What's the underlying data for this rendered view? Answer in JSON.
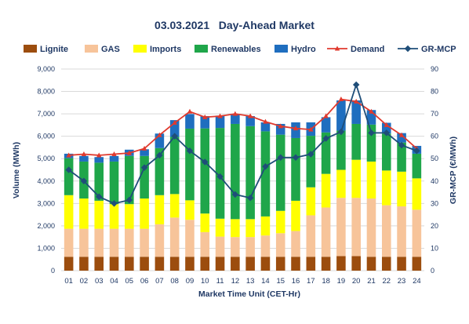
{
  "chart_data": {
    "type": "bar",
    "stacked": true,
    "title": "03.03.2021   Day-Ahead Market",
    "xlabel": "Market Time Unit (CET-Hr)",
    "ylabel": "Volume (MWh)",
    "y2label": "GR-MCP (€/MWh)",
    "ylim": [
      0,
      9000
    ],
    "y2lim": [
      0,
      90
    ],
    "yticks": [
      "0",
      "1,000",
      "2,000",
      "3,000",
      "4,000",
      "5,000",
      "6,000",
      "7,000",
      "8,000",
      "9,000"
    ],
    "y2ticks": [
      "0",
      "10",
      "20",
      "30",
      "40",
      "50",
      "60",
      "70",
      "80",
      "90"
    ],
    "grid": true,
    "legend_position": "top",
    "categories": [
      "01",
      "02",
      "03",
      "04",
      "05",
      "06",
      "07",
      "08",
      "09",
      "10",
      "11",
      "12",
      "13",
      "14",
      "15",
      "16",
      "17",
      "18",
      "19",
      "20",
      "21",
      "22",
      "23",
      "24"
    ],
    "series": [
      {
        "name": "Lignite",
        "type": "bar",
        "color": "#9c4d0e",
        "values": [
          620,
          620,
          620,
          620,
          620,
          620,
          620,
          620,
          620,
          620,
          620,
          620,
          620,
          620,
          620,
          620,
          620,
          620,
          650,
          650,
          620,
          620,
          620,
          620
        ]
      },
      {
        "name": "GAS",
        "type": "bar",
        "color": "#f7c49a",
        "values": [
          1250,
          1250,
          1250,
          1250,
          1250,
          1250,
          1450,
          1750,
          1650,
          1100,
          900,
          880,
          880,
          950,
          1050,
          1150,
          1850,
          2200,
          2600,
          2600,
          2600,
          2300,
          2250,
          2100
        ]
      },
      {
        "name": "Imports",
        "type": "bar",
        "color": "#ffff00",
        "values": [
          1500,
          1350,
          1250,
          1100,
          1100,
          1350,
          1300,
          1050,
          870,
          830,
          800,
          800,
          800,
          850,
          1000,
          1350,
          1250,
          1500,
          1250,
          1700,
          1650,
          1550,
          1550,
          1400
        ]
      },
      {
        "name": "Renewables",
        "type": "bar",
        "color": "#1fa64a",
        "values": [
          1650,
          1650,
          1700,
          1900,
          2150,
          1900,
          2100,
          2550,
          3200,
          3800,
          4050,
          4250,
          4150,
          3800,
          3400,
          2800,
          2300,
          1850,
          1750,
          1600,
          1650,
          1650,
          1300,
          1100
        ]
      },
      {
        "name": "Hydro",
        "type": "bar",
        "color": "#1f6ebf",
        "values": [
          200,
          250,
          250,
          250,
          280,
          300,
          650,
          750,
          650,
          550,
          550,
          450,
          450,
          400,
          480,
          700,
          600,
          680,
          1350,
          1050,
          650,
          480,
          420,
          350
        ]
      },
      {
        "name": "Demand",
        "type": "line",
        "color": "#e03a2e",
        "values": [
          5150,
          5200,
          5150,
          5200,
          5250,
          5450,
          6050,
          6600,
          7100,
          6850,
          6900,
          7000,
          6900,
          6650,
          6450,
          6350,
          6300,
          6900,
          7650,
          7550,
          7100,
          6500,
          6050,
          5450
        ]
      },
      {
        "name": "GR-MCP",
        "type": "line",
        "axis": "right",
        "color": "#1f4e79",
        "values": [
          45,
          40,
          33,
          30,
          31.5,
          46,
          51.5,
          60,
          53.5,
          48.5,
          42,
          34,
          32.5,
          46.5,
          50.5,
          50.5,
          52,
          59,
          62,
          83,
          61.5,
          61.5,
          56,
          53.5
        ]
      }
    ]
  }
}
